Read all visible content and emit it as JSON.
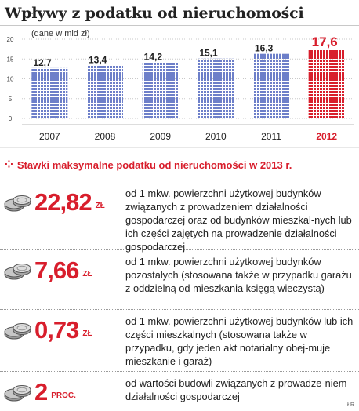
{
  "title": "Wpływy z podatku od nieruchomości",
  "chart_data": {
    "type": "bar",
    "unit_label": "(dane w mld zł)",
    "categories": [
      "2007",
      "2008",
      "2009",
      "2010",
      "2011",
      "2012"
    ],
    "values": [
      12.7,
      13.4,
      14.2,
      15.1,
      16.3,
      17.6
    ],
    "value_labels": [
      "12,7",
      "13,4",
      "14,2",
      "15,1",
      "16,3",
      "17,6"
    ],
    "ylim": [
      0,
      20
    ],
    "yticks": [
      0,
      5,
      10,
      15,
      20
    ],
    "highlight_index": 5,
    "colors": {
      "bar": "#6d7fc9",
      "highlight": "#d81e2c",
      "grid": "#c8c8c8"
    }
  },
  "rates_heading": "Stawki maksymalne podatku od nieruchomości w 2013 r.",
  "rates": [
    {
      "value": "22,82",
      "unit": "ZŁ",
      "icon": "coins-icon",
      "description": "od 1 mkw. powierzchni użytkowej budynków związanych z prowadzeniem działalności gospodarczej oraz od budynków mieszkal-nych lub ich części zajętych na prowadzenie działalności gospodarczej"
    },
    {
      "value": "7,66",
      "unit": "ZŁ",
      "icon": "coins-icon",
      "description": "od 1 mkw. powierzchni użytkowej budynków pozostałych (stosowana także w przypadku garażu z oddzielną od mieszkania księgą wieczystą)"
    },
    {
      "value": "0,73",
      "unit": "ZŁ",
      "icon": "coins-icon",
      "description": "od 1 mkw. powierzchni użytkowej budynków lub ich części mieszkalnych (stosowana także w przypadku, gdy jeden akt notarialny obej-muje mieszkanie i garaż)"
    },
    {
      "value": "2",
      "unit": "PROC.",
      "icon": "coins-icon",
      "description": "od wartości budowli związanych z prowadze-niem działalności gospodarczej"
    }
  ],
  "source": "ŁR"
}
